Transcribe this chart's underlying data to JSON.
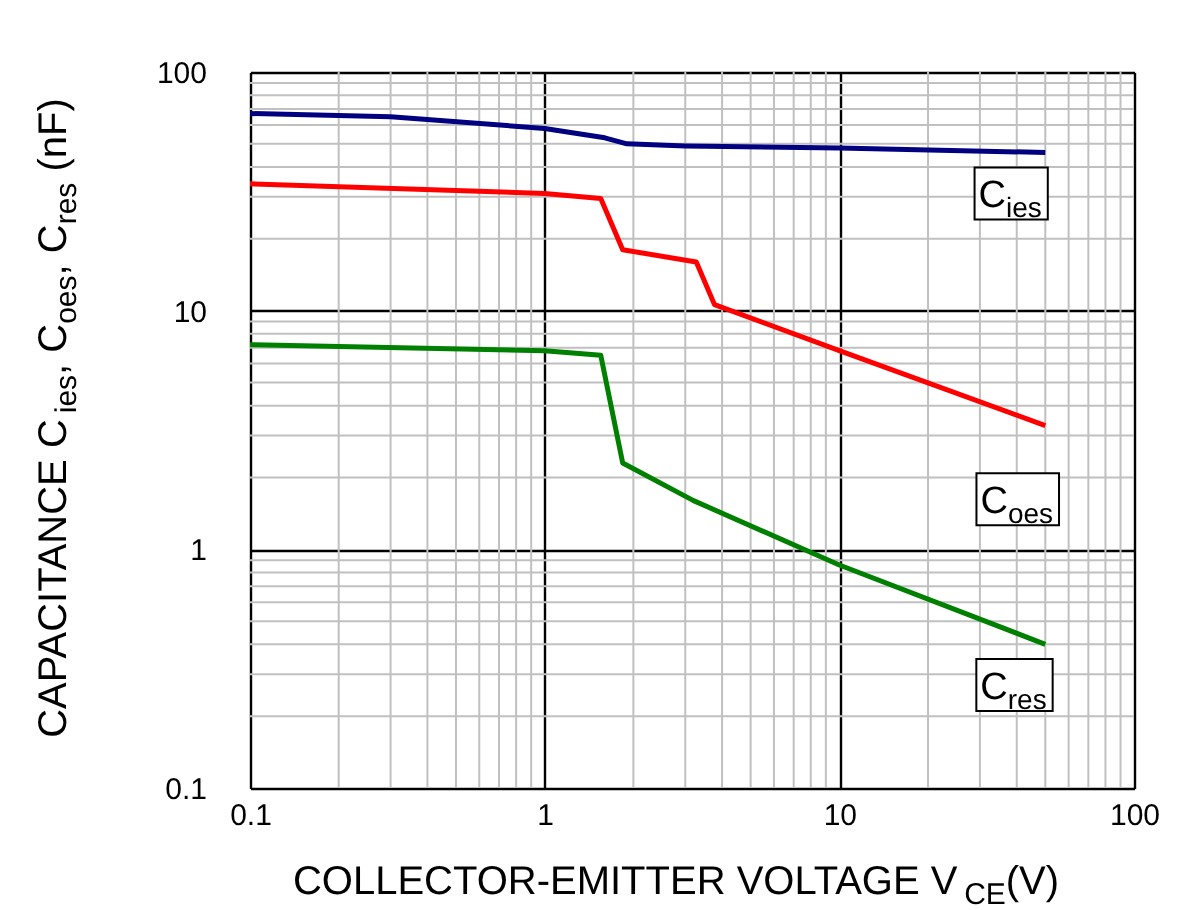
{
  "chart_data": {
    "type": "line",
    "xlabel": "COLLECTOR-EMITTER  VOLTAGE  V$_{CE}$(V)",
    "ylabel": "CAPACITANCE  C$_{ies}$,  C$_{oes}$,  C$_{res}$  (nF)",
    "log": "xy",
    "grid": true,
    "legend": false,
    "xlim": [
      0.1,
      100
    ],
    "xticks": [
      0.1,
      1,
      10,
      100
    ],
    "ylim": [
      0.1,
      100
    ],
    "yticks": [
      0.1,
      1,
      10,
      100
    ],
    "series": [
      {
        "color": "#000080",
        "x": [
          0.1,
          0.3,
          1,
          1.6,
          1.9,
          3,
          10,
          50
        ],
        "values": [
          67,
          65,
          58,
          53,
          50,
          49,
          48,
          46
        ]
      },
      {
        "color": "#ff0000",
        "x": [
          0.1,
          1,
          1.55,
          1.84,
          3.27,
          3.77,
          10,
          50
        ],
        "values": [
          34,
          31,
          29.5,
          18,
          16,
          10.6,
          6.8,
          3.3
        ]
      },
      {
        "color": "#008000",
        "x": [
          0.1,
          1,
          1.55,
          1.84,
          3.2,
          10,
          50
        ],
        "values": [
          7.2,
          6.8,
          6.5,
          2.3,
          1.6,
          0.86,
          0.4
        ]
      }
    ],
    "annotations": [
      {
        "text": "C$_{ies}$",
        "x": 38,
        "y": 31
      },
      {
        "text": "C$_{oes}$",
        "x": 40,
        "y": 1.62
      },
      {
        "text": "C$_{res}$",
        "x": 39,
        "y": 0.27
      }
    ]
  }
}
